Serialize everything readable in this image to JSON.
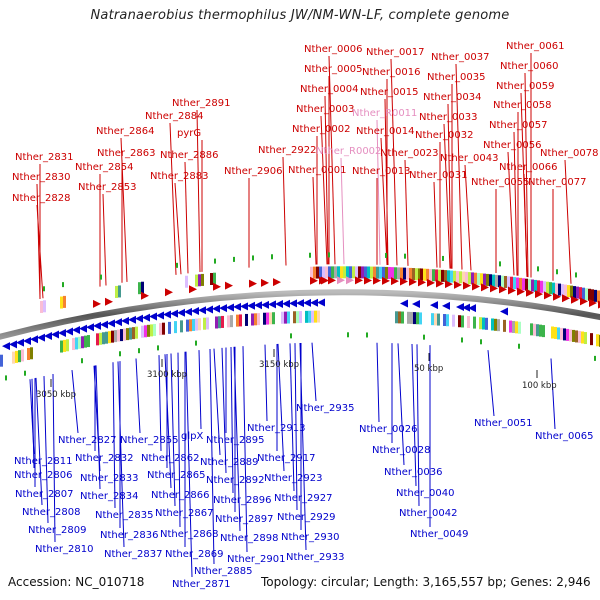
{
  "title": "Natranaerobius thermophilus JW/NM-WN-LF, complete genome",
  "footer": {
    "accession": "Accession: NC_010718",
    "summary": "Topology: circular; Length: 3,165,557 bp; Genes: 2,946"
  },
  "colors": {
    "forward": "#cc0000",
    "reverse": "#0000cc",
    "rna": "#e58fc0",
    "backbone": "#777777",
    "gc_marks": "#22aa22"
  },
  "ticks": [
    "3050 kbp",
    "3100 kbp",
    "3150 kbp",
    "50 kbp",
    "100 kbp"
  ],
  "forward_labels": [
    "Nther_2831",
    "Nther_2830",
    "Nther_2828",
    "Nther_2854",
    "Nther_2853",
    "Nther_2864",
    "Nther_2863",
    "Nther_2891",
    "Nther_2884",
    "pyrG",
    "Nther_2886",
    "Nther_2883",
    "Nther_2906",
    "Nther_2922",
    "Nther_0006",
    "Nther_0005",
    "Nther_0004",
    "Nther_0003",
    "Nther_0002",
    "Nther_0001",
    "Nther_0017",
    "Nther_0016",
    "Nther_0015",
    "Nther_0014",
    "Nther_0013",
    "Nther_0023",
    "Nther_0037",
    "Nther_0035",
    "Nther_0034",
    "Nther_0033",
    "Nther_0032",
    "Nther_0031",
    "Nther_0043",
    "Nther_0061",
    "Nther_0060",
    "Nther_0059",
    "Nther_0058",
    "Nther_0057",
    "Nther_0056",
    "Nther_0055",
    "Nther_0066",
    "Nther_0078",
    "Nther_0077"
  ],
  "rna_labels": [
    "Nther_R0011",
    "Nther_R0002"
  ],
  "reverse_labels": [
    "Nther_2827",
    "Nther_2811",
    "Nther_2806",
    "Nther_2807",
    "Nther_2808",
    "Nther_2809",
    "Nther_2810",
    "Nther_2832",
    "Nther_2833",
    "Nther_2834",
    "Nther_2835",
    "Nther_2836",
    "Nther_2837",
    "Nther_2855",
    "Nther_2862",
    "Nther_2865",
    "Nther_2866",
    "Nther_2867",
    "Nther_2868",
    "Nther_2869",
    "Nther_2871",
    "Nther_2885",
    "glpX",
    "Nther_2895",
    "Nther_2889",
    "Nther_2892",
    "Nther_2896",
    "Nther_2897",
    "Nther_2898",
    "Nther_2901",
    "Nther_2913",
    "Nther_2917",
    "Nther_2923",
    "Nther_2927",
    "Nther_2929",
    "Nther_2930",
    "Nther_2933",
    "Nther_2935",
    "Nther_0026",
    "Nther_0028",
    "Nther_0036",
    "Nther_0040",
    "Nther_0042",
    "Nther_0049",
    "Nther_0051",
    "Nther_0065"
  ]
}
